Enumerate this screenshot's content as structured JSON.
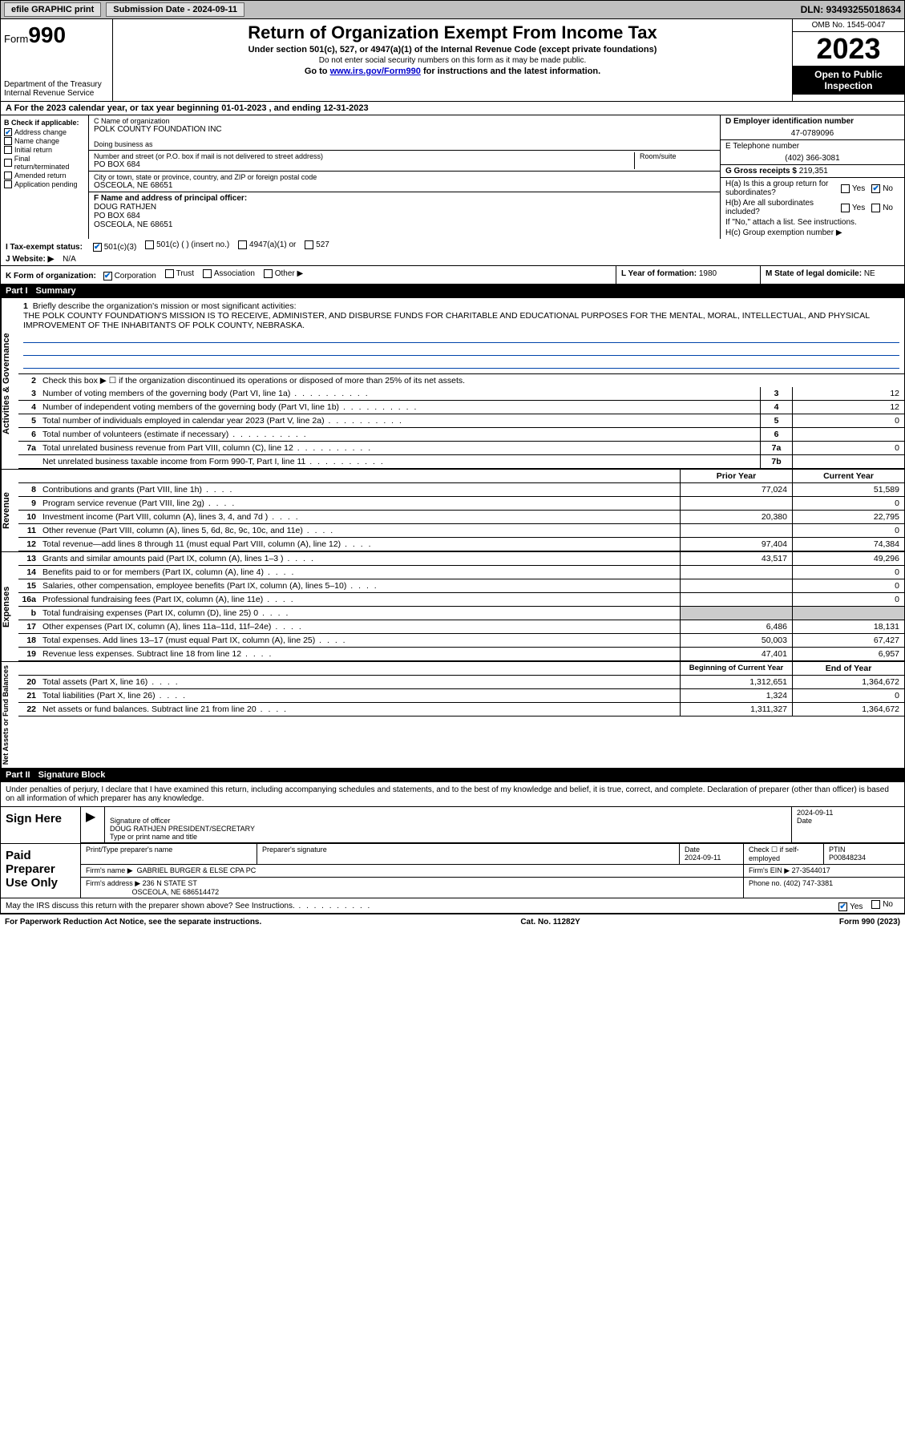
{
  "toolbar": {
    "efile": "efile GRAPHIC print",
    "sub_label": "Submission Date - 2024-09-11",
    "dln": "DLN: 93493255018634"
  },
  "header": {
    "form": "Form",
    "formno": "990",
    "dept": "Department of the Treasury Internal Revenue Service",
    "title": "Return of Organization Exempt From Income Tax",
    "sub1": "Under section 501(c), 527, or 4947(a)(1) of the Internal Revenue Code (except private foundations)",
    "sub2": "Do not enter social security numbers on this form as it may be made public.",
    "sub3_pre": "Go to ",
    "sub3_link": "www.irs.gov/Form990",
    "sub3_post": " for instructions and the latest information.",
    "omb": "OMB No. 1545-0047",
    "year": "2023",
    "open": "Open to Public Inspection"
  },
  "rowA": "A For the 2023 calendar year, or tax year beginning 01-01-2023    , and ending 12-31-2023",
  "colB": {
    "label": "B Check if applicable:",
    "items": [
      {
        "chk": true,
        "txt": "Address change"
      },
      {
        "chk": false,
        "txt": "Name change"
      },
      {
        "chk": false,
        "txt": "Initial return"
      },
      {
        "chk": false,
        "txt": "Final return/terminated"
      },
      {
        "chk": false,
        "txt": "Amended return"
      },
      {
        "chk": false,
        "txt": "Application pending"
      }
    ]
  },
  "colC": {
    "name_lbl": "C Name of organization",
    "name": "POLK COUNTY FOUNDATION INC",
    "dba_lbl": "Doing business as",
    "addr_lbl": "Number and street (or P.O. box if mail is not delivered to street address)",
    "addr": "PO BOX 684",
    "room_lbl": "Room/suite",
    "city_lbl": "City or town, state or province, country, and ZIP or foreign postal code",
    "city": "OSCEOLA, NE  68651",
    "f_lbl": "F Name and address of principal officer:",
    "f_name": "DOUG RATHJEN",
    "f_addr1": "PO BOX 684",
    "f_addr2": "OSCEOLA, NE  68651"
  },
  "colD": {
    "d_lbl": "D Employer identification number",
    "ein": "47-0789096",
    "e_lbl": "E Telephone number",
    "phone": "(402) 366-3081",
    "g_lbl": "G Gross receipts $ ",
    "g_val": "219,351"
  },
  "colH": {
    "ha": "H(a)  Is this a group return for subordinates?",
    "hb": "H(b)  Are all subordinates included?",
    "hb_note": "If \"No,\" attach a list. See instructions.",
    "hc": "H(c)  Group exemption number ▶"
  },
  "rowI": {
    "label": "I    Tax-exempt status:",
    "o1": "501(c)(3)",
    "o2": "501(c) (  ) (insert no.)",
    "o3": "4947(a)(1) or",
    "o4": "527"
  },
  "rowJ": {
    "label": "J    Website: ▶",
    "val": "N/A"
  },
  "rowK": {
    "label": "K Form of organization:",
    "o1": "Corporation",
    "o2": "Trust",
    "o3": "Association",
    "o4": "Other ▶"
  },
  "rowL": {
    "label": "L Year of formation: ",
    "val": "1980"
  },
  "rowM": {
    "label": "M State of legal domicile: ",
    "val": "NE"
  },
  "part1": {
    "hdr_num": "Part I",
    "hdr_txt": "Summary",
    "q1_lbl": "Briefly describe the organization's mission or most significant activities:",
    "q1_txt": "THE POLK COUNTY FOUNDATION'S MISSION IS TO RECEIVE, ADMINISTER, AND DISBURSE FUNDS FOR CHARITABLE AND EDUCATIONAL PURPOSES FOR THE MENTAL, MORAL, INTELLECTUAL, AND PHYSICAL IMPROVEMENT OF THE INHABITANTS OF POLK COUNTY, NEBRASKA.",
    "q2": "Check this box ▶ ☐ if the organization discontinued its operations or disposed of more than 25% of its net assets.",
    "vlab1": "Activities & Governance",
    "vlab2": "Revenue",
    "vlab3": "Expenses",
    "vlab4": "Net Assets or Fund Balances",
    "hdr_prior": "Prior Year",
    "hdr_curr": "Current Year",
    "hdr_begin": "Beginning of Current Year",
    "hdr_end": "End of Year",
    "lines_gov": [
      {
        "n": "3",
        "t": "Number of voting members of the governing body (Part VI, line 1a)",
        "b": "3",
        "v": "12"
      },
      {
        "n": "4",
        "t": "Number of independent voting members of the governing body (Part VI, line 1b)",
        "b": "4",
        "v": "12"
      },
      {
        "n": "5",
        "t": "Total number of individuals employed in calendar year 2023 (Part V, line 2a)",
        "b": "5",
        "v": "0"
      },
      {
        "n": "6",
        "t": "Total number of volunteers (estimate if necessary)",
        "b": "6",
        "v": ""
      },
      {
        "n": "7a",
        "t": "Total unrelated business revenue from Part VIII, column (C), line 12",
        "b": "7a",
        "v": "0"
      },
      {
        "n": "",
        "t": "Net unrelated business taxable income from Form 990-T, Part I, line 11",
        "b": "7b",
        "v": ""
      }
    ],
    "lines_rev": [
      {
        "n": "8",
        "t": "Contributions and grants (Part VIII, line 1h)",
        "p": "77,024",
        "c": "51,589"
      },
      {
        "n": "9",
        "t": "Program service revenue (Part VIII, line 2g)",
        "p": "",
        "c": "0"
      },
      {
        "n": "10",
        "t": "Investment income (Part VIII, column (A), lines 3, 4, and 7d )",
        "p": "20,380",
        "c": "22,795"
      },
      {
        "n": "11",
        "t": "Other revenue (Part VIII, column (A), lines 5, 6d, 8c, 9c, 10c, and 11e)",
        "p": "",
        "c": "0"
      },
      {
        "n": "12",
        "t": "Total revenue—add lines 8 through 11 (must equal Part VIII, column (A), line 12)",
        "p": "97,404",
        "c": "74,384"
      }
    ],
    "lines_exp": [
      {
        "n": "13",
        "t": "Grants and similar amounts paid (Part IX, column (A), lines 1–3 )",
        "p": "43,517",
        "c": "49,296"
      },
      {
        "n": "14",
        "t": "Benefits paid to or for members (Part IX, column (A), line 4)",
        "p": "",
        "c": "0"
      },
      {
        "n": "15",
        "t": "Salaries, other compensation, employee benefits (Part IX, column (A), lines 5–10)",
        "p": "",
        "c": "0"
      },
      {
        "n": "16a",
        "t": "Professional fundraising fees (Part IX, column (A), line 11e)",
        "p": "",
        "c": "0"
      },
      {
        "n": "b",
        "t": "Total fundraising expenses (Part IX, column (D), line 25) 0",
        "p": "grey",
        "c": "grey"
      },
      {
        "n": "17",
        "t": "Other expenses (Part IX, column (A), lines 11a–11d, 11f–24e)",
        "p": "6,486",
        "c": "18,131"
      },
      {
        "n": "18",
        "t": "Total expenses. Add lines 13–17 (must equal Part IX, column (A), line 25)",
        "p": "50,003",
        "c": "67,427"
      },
      {
        "n": "19",
        "t": "Revenue less expenses. Subtract line 18 from line 12",
        "p": "47,401",
        "c": "6,957"
      }
    ],
    "lines_net": [
      {
        "n": "20",
        "t": "Total assets (Part X, line 16)",
        "p": "1,312,651",
        "c": "1,364,672"
      },
      {
        "n": "21",
        "t": "Total liabilities (Part X, line 26)",
        "p": "1,324",
        "c": "0"
      },
      {
        "n": "22",
        "t": "Net assets or fund balances. Subtract line 21 from line 20",
        "p": "1,311,327",
        "c": "1,364,672"
      }
    ]
  },
  "part2": {
    "hdr_num": "Part II",
    "hdr_txt": "Signature Block",
    "decl": "Under penalties of perjury, I declare that I have examined this return, including accompanying schedules and statements, and to the best of my knowledge and belief, it is true, correct, and complete. Declaration of preparer (other than officer) is based on all information of which preparer has any knowledge.",
    "sign_here": "Sign Here",
    "sig_lbl": "Signature of officer",
    "sig_name": "DOUG RATHJEN  PRESIDENT/SECRETARY",
    "sig_type": "Type or print name and title",
    "date_lbl": "Date",
    "date": "2024-09-11",
    "paid": "Paid Preparer Use Only",
    "prep_name_lbl": "Print/Type preparer's name",
    "prep_sig_lbl": "Preparer's signature",
    "prep_date_lbl": "Date",
    "prep_date": "2024-09-11",
    "chk_lbl": "Check ☐ if self-employed",
    "ptin_lbl": "PTIN",
    "ptin": "P00848234",
    "firm_name_lbl": "Firm's name      ▶",
    "firm_name": "GABRIEL BURGER & ELSE CPA PC",
    "firm_ein_lbl": "Firm's EIN ▶",
    "firm_ein": "27-3544017",
    "firm_addr_lbl": "Firm's address ▶",
    "firm_addr": "236 N STATE ST",
    "firm_city": "OSCEOLA, NE  686514472",
    "phone_lbl": "Phone no. ",
    "phone": "(402) 747-3381",
    "may_irs": "May the IRS discuss this return with the preparer shown above? See Instructions."
  },
  "footer": {
    "left": "For Paperwork Reduction Act Notice, see the separate instructions.",
    "mid": "Cat. No. 11282Y",
    "right": "Form 990 (2023)"
  },
  "yn": {
    "yes": "Yes",
    "no": "No"
  }
}
